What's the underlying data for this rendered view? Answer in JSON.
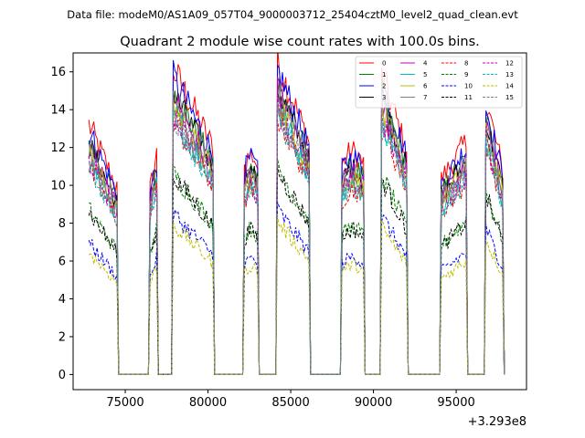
{
  "chart_data": {
    "type": "line",
    "suptitle": "Data file: modeM0/AS1A09_057T04_9000003712_25404cztM0_level2_quad_clean.evt",
    "title": "Quadrant 2 module wise count rates with 100.0s bins.",
    "xlabel": "",
    "ylabel": "",
    "x_offset_label": "+3.293e8",
    "xlim": [
      71850,
      99250
    ],
    "ylim": [
      -0.8,
      17.0
    ],
    "xticks": [
      75000,
      80000,
      85000,
      90000,
      95000
    ],
    "xtick_labels": [
      "75000",
      "80000",
      "85000",
      "90000",
      "95000"
    ],
    "yticks": [
      0,
      2,
      4,
      6,
      8,
      10,
      12,
      14,
      16
    ],
    "ytick_labels": [
      "0",
      "2",
      "4",
      "6",
      "8",
      "10",
      "12",
      "14",
      "16"
    ],
    "grid": false,
    "legend_location": "top-right",
    "legend_columns": 4,
    "bin_size_s": 100,
    "segments": [
      {
        "start": 72800,
        "end": 74500,
        "shape": "decay"
      },
      {
        "start": 76500,
        "end": 76900,
        "shape": "rise"
      },
      {
        "start": 77900,
        "end": 80300,
        "shape": "decay"
      },
      {
        "start": 82200,
        "end": 83000,
        "shape": "flat"
      },
      {
        "start": 84200,
        "end": 86100,
        "shape": "decay"
      },
      {
        "start": 88100,
        "end": 89400,
        "shape": "flat"
      },
      {
        "start": 90500,
        "end": 92000,
        "shape": "decay"
      },
      {
        "start": 94100,
        "end": 95600,
        "shape": "rise"
      },
      {
        "start": 96800,
        "end": 97800,
        "shape": "decay"
      }
    ],
    "series": [
      {
        "name": "0",
        "color": "#ff0000",
        "dash": "solid",
        "level": 11.2
      },
      {
        "name": "1",
        "color": "#008000",
        "dash": "solid",
        "level": 10.4
      },
      {
        "name": "2",
        "color": "#0000ff",
        "dash": "solid",
        "level": 10.9
      },
      {
        "name": "3",
        "color": "#000000",
        "dash": "solid",
        "level": 10.3
      },
      {
        "name": "4",
        "color": "#bf00bf",
        "dash": "solid",
        "level": 10.1
      },
      {
        "name": "5",
        "color": "#00bfbf",
        "dash": "solid",
        "level": 9.6
      },
      {
        "name": "6",
        "color": "#bfbf00",
        "dash": "solid",
        "level": 9.9
      },
      {
        "name": "7",
        "color": "#808080",
        "dash": "solid",
        "level": 10.2
      },
      {
        "name": "8",
        "color": "#ff0000",
        "dash": "dashed",
        "level": 9.3
      },
      {
        "name": "9",
        "color": "#008000",
        "dash": "dashed",
        "level": 7.4
      },
      {
        "name": "10",
        "color": "#0000ff",
        "dash": "dashed",
        "level": 5.9
      },
      {
        "name": "11",
        "color": "#000000",
        "dash": "dashed",
        "level": 7.3
      },
      {
        "name": "12",
        "color": "#bf00bf",
        "dash": "dashed",
        "level": 9.6
      },
      {
        "name": "13",
        "color": "#00bfbf",
        "dash": "dashed",
        "level": 9.4
      },
      {
        "name": "14",
        "color": "#bfbf00",
        "dash": "dashed",
        "level": 5.5
      },
      {
        "name": "15",
        "color": "#808080",
        "dash": "dashed",
        "level": 9.5
      }
    ]
  }
}
